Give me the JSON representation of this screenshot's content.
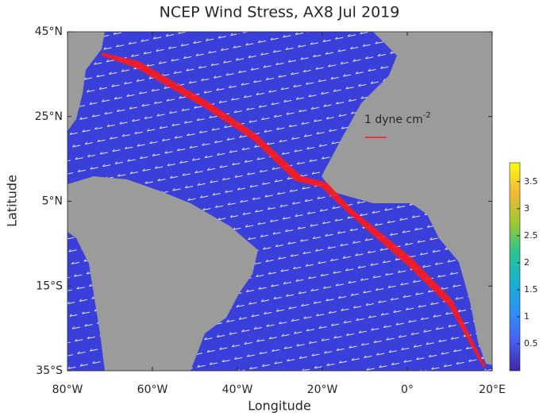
{
  "chart_data": {
    "type": "map",
    "title": "NCEP Wind Stress, AX8 Jul 2019",
    "x_label": "Longitude",
    "y_label": "Latitude",
    "xlim": [
      -80,
      20
    ],
    "ylim": [
      -35,
      45
    ],
    "xticks": [
      {
        "value": -80,
        "label": "80°W"
      },
      {
        "value": -60,
        "label": "60°W"
      },
      {
        "value": -40,
        "label": "40°W"
      },
      {
        "value": -20,
        "label": "20°W"
      },
      {
        "value": 0,
        "label": "0°"
      },
      {
        "value": 20,
        "label": "20°E"
      }
    ],
    "yticks": [
      {
        "value": -35,
        "label": "35°S"
      },
      {
        "value": -15,
        "label": "15°S"
      },
      {
        "value": 5,
        "label": "5°N"
      },
      {
        "value": 25,
        "label": "25°N"
      },
      {
        "value": 45,
        "label": "45°N"
      }
    ],
    "annotation": {
      "text": "1 dyne cm",
      "superscript": "-2"
    },
    "colorbar": {
      "lim": [
        0,
        3.85
      ],
      "ticks": [
        0.5,
        1,
        1.5,
        2,
        2.5,
        3,
        3.5
      ],
      "colors": [
        "#3e26a8",
        "#4760f0",
        "#2e91f5",
        "#17b1cf",
        "#2bc48f",
        "#a0c92f",
        "#f3b836",
        "#f9fb15"
      ]
    }
  }
}
